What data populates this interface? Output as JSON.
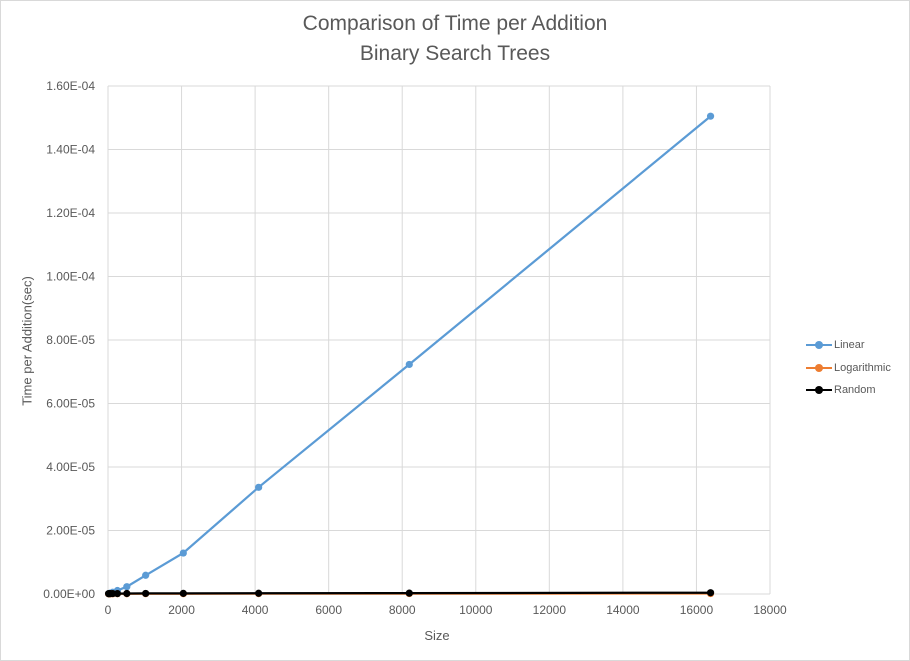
{
  "chart_data": {
    "type": "line",
    "title": "Comparison of Time per Addition",
    "subtitle": "Binary Search Trees",
    "xlabel": "Size",
    "ylabel": "Time per Addition(sec)",
    "xlim": [
      0,
      18000
    ],
    "ylim": [
      0,
      0.00016
    ],
    "x_ticks": [
      0,
      2000,
      4000,
      6000,
      8000,
      10000,
      12000,
      14000,
      16000,
      18000
    ],
    "x_tick_labels": [
      "0",
      "2000",
      "4000",
      "6000",
      "8000",
      "10000",
      "12000",
      "14000",
      "16000",
      "18000"
    ],
    "y_ticks": [
      0,
      2e-05,
      4e-05,
      6e-05,
      8e-05,
      0.0001,
      0.00012,
      0.00014,
      0.00016
    ],
    "y_tick_labels": [
      "0.00E+00",
      "2.00E-05",
      "4.00E-05",
      "6.00E-05",
      "8.00E-05",
      "1.00E-04",
      "1.20E-04",
      "1.40E-04",
      "1.60E-04"
    ],
    "grid": true,
    "legend_position": "right",
    "x": [
      16,
      32,
      64,
      128,
      256,
      512,
      1024,
      2048,
      4096,
      8192,
      16384
    ],
    "series": [
      {
        "name": "Linear",
        "color": "#5b9bd5",
        "values": [
          1.2e-07,
          1.8e-07,
          3e-07,
          5.5e-07,
          1.1e-06,
          2.3e-06,
          5.9e-06,
          1.29e-05,
          3.36e-05,
          7.23e-05,
          0.0001505
        ]
      },
      {
        "name": "Logarithmic",
        "color": "#ed7d31",
        "values": [
          5e-08,
          5e-08,
          6e-08,
          7e-08,
          8e-08,
          9e-08,
          1e-07,
          1.1e-07,
          1.2e-07,
          1.3e-07,
          1.5e-07
        ]
      },
      {
        "name": "Random",
        "color": "#000000",
        "values": [
          1e-07,
          1.1e-07,
          1.2e-07,
          1.3e-07,
          1.4e-07,
          1.6e-07,
          1.8e-07,
          2e-07,
          2.3e-07,
          2.7e-07,
          4e-07
        ]
      }
    ]
  }
}
